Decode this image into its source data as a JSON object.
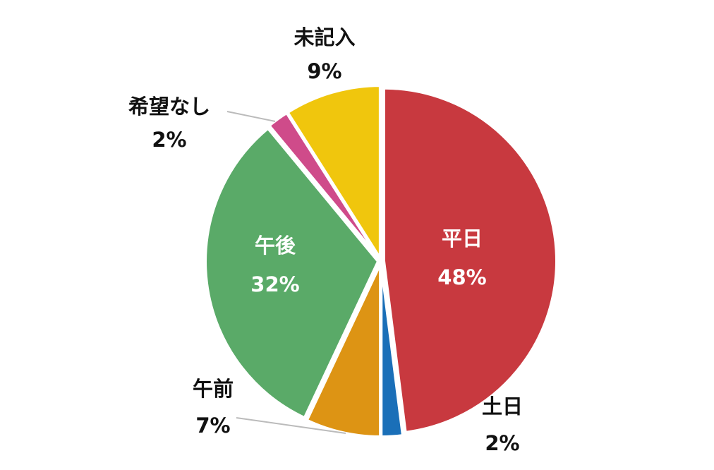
{
  "chart_data": {
    "type": "pie",
    "categories": [
      "平日",
      "土日",
      "午前",
      "午後",
      "希望なし",
      "未記入"
    ],
    "values": [
      48,
      2,
      7,
      32,
      2,
      9
    ],
    "value_labels": [
      "48%",
      "2%",
      "7%",
      "32%",
      "2%",
      "9%"
    ],
    "colors": [
      "#c8393f",
      "#1a6fb8",
      "#dd9414",
      "#5aaa68",
      "#cf4b8a",
      "#f0c60d"
    ]
  }
}
